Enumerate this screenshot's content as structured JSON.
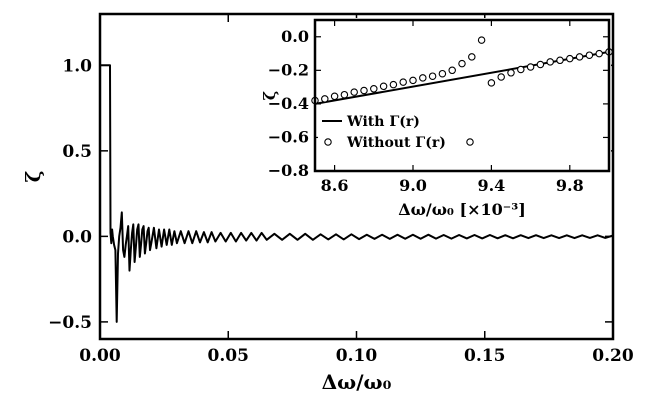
{
  "chart_data": [
    {
      "type": "line",
      "xlabel": "Δω/ω₀",
      "ylabel": "ζ",
      "xlim": [
        0.0,
        0.2
      ],
      "ylim": [
        -0.6,
        1.3
      ],
      "xticks": [
        "0.00",
        "0.05",
        "0.10",
        "0.15",
        "0.20"
      ],
      "yticks": [
        "−0.5",
        "0.0",
        "0.5",
        "1.0"
      ],
      "series": [
        {
          "x": [
            0.0,
            0.0039,
            0.0041,
            0.0044,
            0.0047,
            0.005,
            0.0055,
            0.006,
            0.0065,
            0.007,
            0.0075,
            0.008,
            0.0085,
            0.009,
            0.0095,
            0.01,
            0.0105,
            0.011,
            0.0115,
            0.012,
            0.0125,
            0.013,
            0.0135,
            0.014,
            0.0145,
            0.015,
            0.0155,
            0.016,
            0.0165,
            0.017,
            0.0175,
            0.018,
            0.0185,
            0.019,
            0.0195,
            0.02,
            0.021,
            0.022,
            0.023,
            0.024,
            0.025,
            0.026,
            0.027,
            0.028,
            0.029,
            0.03,
            0.0315,
            0.033,
            0.0345,
            0.036,
            0.0375,
            0.039,
            0.0405,
            0.042,
            0.0435,
            0.045,
            0.047,
            0.049,
            0.051,
            0.053,
            0.055,
            0.057,
            0.059,
            0.061,
            0.063,
            0.065,
            0.068,
            0.071,
            0.074,
            0.077,
            0.08,
            0.083,
            0.086,
            0.089,
            0.092,
            0.095,
            0.098,
            0.101,
            0.104,
            0.107,
            0.11,
            0.113,
            0.116,
            0.119,
            0.122,
            0.125,
            0.128,
            0.131,
            0.134,
            0.137,
            0.14,
            0.143,
            0.146,
            0.149,
            0.152,
            0.155,
            0.158,
            0.161,
            0.164,
            0.167,
            0.17,
            0.173,
            0.176,
            0.179,
            0.182,
            0.185,
            0.188,
            0.191,
            0.194,
            0.197,
            0.2
          ],
          "y": [
            1.0,
            1.0,
            0.02,
            -0.04,
            0.04,
            0.0,
            -0.05,
            -0.08,
            -0.5,
            -0.1,
            0.0,
            0.05,
            0.14,
            -0.08,
            -0.12,
            -0.05,
            0.0,
            0.06,
            -0.2,
            -0.08,
            0.02,
            0.07,
            -0.15,
            -0.06,
            0.04,
            0.07,
            -0.12,
            -0.05,
            0.04,
            0.06,
            -0.1,
            -0.04,
            0.03,
            0.05,
            -0.08,
            -0.04,
            0.05,
            -0.07,
            0.04,
            -0.06,
            0.04,
            -0.05,
            0.04,
            -0.05,
            0.03,
            -0.04,
            0.03,
            -0.04,
            0.03,
            -0.04,
            0.03,
            -0.035,
            0.025,
            -0.035,
            0.025,
            -0.03,
            0.02,
            -0.03,
            0.02,
            -0.03,
            0.02,
            -0.025,
            0.02,
            -0.025,
            0.02,
            -0.02,
            0.015,
            -0.02,
            0.015,
            -0.02,
            0.015,
            -0.02,
            0.012,
            -0.018,
            0.012,
            -0.018,
            0.012,
            -0.016,
            0.01,
            -0.015,
            0.01,
            -0.015,
            0.01,
            -0.014,
            0.01,
            -0.014,
            0.01,
            -0.013,
            0.008,
            -0.013,
            0.008,
            -0.012,
            0.008,
            -0.012,
            0.008,
            -0.011,
            0.007,
            -0.011,
            0.007,
            -0.01,
            0.007,
            -0.01,
            0.006,
            -0.01,
            0.006,
            -0.01,
            0.006,
            -0.009,
            0.006,
            -0.009,
            0.005
          ]
        }
      ]
    },
    {
      "type": "line+scatter",
      "xlabel": "Δω/ω₀ [×10⁻³]",
      "ylabel": "ζ",
      "xlim": [
        8.5,
        10.0
      ],
      "ylim": [
        -0.8,
        0.1
      ],
      "xticks": [
        "8.6",
        "9.0",
        "9.4",
        "9.8"
      ],
      "yticks": [
        "0.0",
        "−0.2",
        "−0.4",
        "−0.6",
        "−0.8"
      ],
      "legend": "lower-left",
      "series": [
        {
          "name": "With Γ(r)",
          "style": "line",
          "x": [
            8.5,
            10.0
          ],
          "y": [
            -0.4,
            -0.09
          ]
        },
        {
          "name": "Without Γ(r)",
          "style": "markers",
          "x": [
            8.5,
            8.55,
            8.6,
            8.65,
            8.7,
            8.75,
            8.8,
            8.85,
            8.9,
            8.95,
            9.0,
            9.05,
            9.1,
            9.15,
            9.2,
            9.25,
            9.3,
            9.35,
            9.4,
            9.45,
            9.5,
            9.55,
            9.6,
            9.65,
            9.7,
            9.75,
            9.8,
            9.85,
            9.9,
            9.95,
            10.0
          ],
          "y": [
            -0.38,
            -0.37,
            -0.355,
            -0.345,
            -0.33,
            -0.32,
            -0.31,
            -0.295,
            -0.285,
            -0.27,
            -0.26,
            -0.245,
            -0.235,
            -0.22,
            -0.2,
            -0.16,
            -0.12,
            -0.02,
            -0.275,
            -0.24,
            -0.215,
            -0.195,
            -0.18,
            -0.165,
            -0.15,
            -0.14,
            -0.13,
            -0.12,
            -0.11,
            -0.1,
            -0.09
          ]
        }
      ]
    }
  ]
}
